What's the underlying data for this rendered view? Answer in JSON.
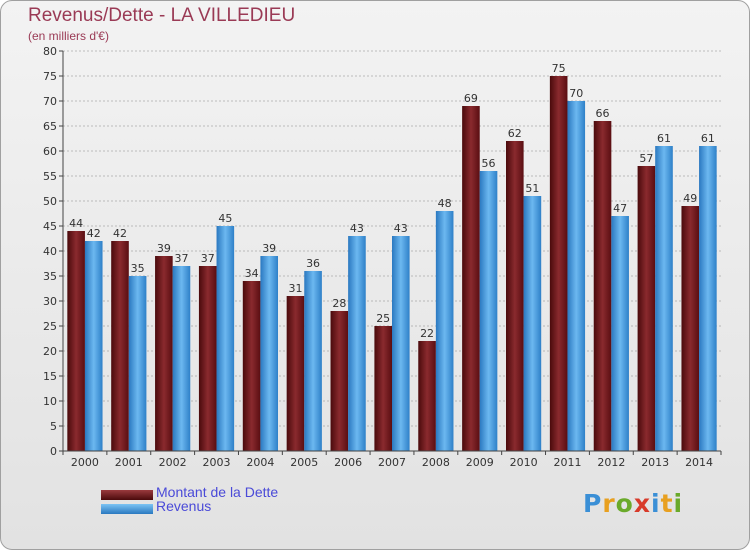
{
  "header": {
    "title": "Revenus/Dette - LA VILLEDIEU",
    "subtitle": "(en milliers d'€)"
  },
  "colors": {
    "dette": "#6b1418",
    "revenus": "#3a8fd6",
    "axis": "#444444",
    "grid": "#888888",
    "title": "#9a3a55",
    "legend_text": "#4a4ad8"
  },
  "legend": {
    "dette_label": "Montant de la Dette",
    "revenus_label": "Revenus"
  },
  "logo": {
    "text": "Proxiti"
  },
  "chart_data": {
    "type": "bar",
    "categories": [
      "2000",
      "2001",
      "2002",
      "2003",
      "2004",
      "2005",
      "2006",
      "2007",
      "2008",
      "2009",
      "2010",
      "2011",
      "2012",
      "2013",
      "2014"
    ],
    "series": [
      {
        "name": "Montant de la Dette",
        "values": [
          44,
          42,
          39,
          37,
          34,
          31,
          28,
          25,
          22,
          69,
          62,
          75,
          66,
          57,
          49
        ]
      },
      {
        "name": "Revenus",
        "values": [
          42,
          35,
          37,
          45,
          39,
          36,
          43,
          43,
          48,
          56,
          51,
          70,
          47,
          61,
          61
        ]
      }
    ],
    "ylim": [
      0,
      80
    ],
    "ytick_step": 5,
    "grid": true,
    "legend_position": "bottom-left"
  }
}
